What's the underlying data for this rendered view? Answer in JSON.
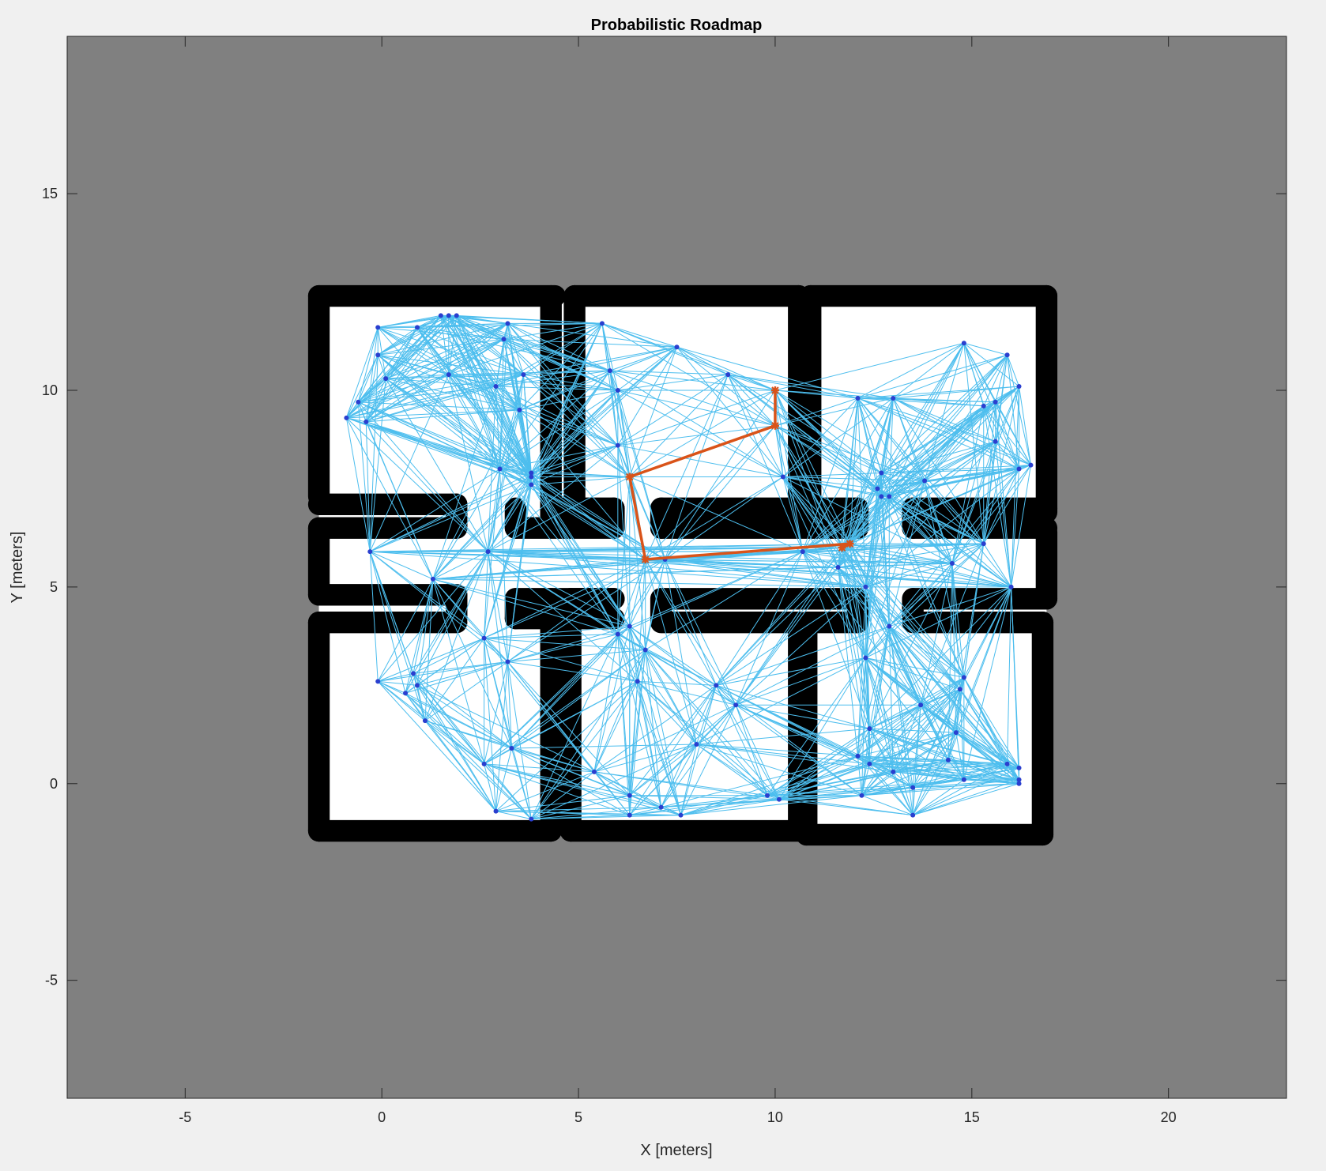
{
  "chart_data": {
    "type": "scatter",
    "title": "Probabilistic Roadmap",
    "xlabel": "X [meters]",
    "ylabel": "Y [meters]",
    "xlim": [
      -8,
      23
    ],
    "ylim": [
      -8,
      19
    ],
    "xticks": [
      -5,
      0,
      5,
      10,
      15,
      20
    ],
    "yticks": [
      -5,
      0,
      5,
      10,
      15
    ],
    "grid": false,
    "colors": {
      "figure_bg": "#f0f0f0",
      "unknown_map": "#808080",
      "free_space": "#ffffff",
      "walls": "#000000",
      "edges": "#4dbeee",
      "nodes": "#2a3fcf",
      "path": "#d95319"
    },
    "walls": [
      {
        "x": [
          -1.6,
          4.4
        ],
        "y": [
          12.4,
          12.4
        ]
      },
      {
        "x": [
          -1.6,
          -1.6
        ],
        "y": [
          12.4,
          7.3
        ]
      },
      {
        "x": [
          4.3,
          4.3
        ],
        "y": [
          12.4,
          6.8
        ]
      },
      {
        "x": [
          -1.6,
          1.9
        ],
        "y": [
          7.1,
          7.1
        ]
      },
      {
        "x": [
          1.9,
          1.9
        ],
        "y": [
          7.1,
          6.5
        ]
      },
      {
        "x": [
          -1.6,
          1.9
        ],
        "y": [
          6.5,
          6.5
        ]
      },
      {
        "x": [
          -1.6,
          -1.6
        ],
        "y": [
          6.5,
          4.8
        ]
      },
      {
        "x": [
          -1.6,
          1.9
        ],
        "y": [
          4.8,
          4.8
        ]
      },
      {
        "x": [
          1.9,
          1.9
        ],
        "y": [
          4.8,
          4.2
        ]
      },
      {
        "x": [
          -1.6,
          1.9
        ],
        "y": [
          4.1,
          4.1
        ]
      },
      {
        "x": [
          -1.6,
          -1.6
        ],
        "y": [
          4.1,
          -1.2
        ]
      },
      {
        "x": [
          -1.6,
          4.3
        ],
        "y": [
          -1.2,
          -1.2
        ]
      },
      {
        "x": [
          4.3,
          4.3
        ],
        "y": [
          -1.2,
          4.7
        ]
      },
      {
        "x": [
          3.4,
          5.9
        ],
        "y": [
          4.7,
          4.7
        ]
      },
      {
        "x": [
          3.4,
          3.4
        ],
        "y": [
          4.7,
          4.2
        ]
      },
      {
        "x": [
          3.4,
          5.9
        ],
        "y": [
          4.2,
          4.2
        ]
      },
      {
        "x": [
          3.4,
          3.4
        ],
        "y": [
          6.5,
          7.0
        ]
      },
      {
        "x": [
          3.4,
          5.9
        ],
        "y": [
          6.5,
          6.5
        ]
      },
      {
        "x": [
          5.9,
          5.9
        ],
        "y": [
          6.5,
          7.0
        ]
      },
      {
        "x": [
          4.3,
          5.9
        ],
        "y": [
          7.0,
          7.0
        ]
      },
      {
        "x": [
          4.9,
          10.6
        ],
        "y": [
          12.4,
          12.4
        ]
      },
      {
        "x": [
          4.9,
          4.9
        ],
        "y": [
          12.4,
          7.0
        ]
      },
      {
        "x": [
          10.6,
          10.6
        ],
        "y": [
          12.4,
          6.9
        ]
      },
      {
        "x": [
          7.1,
          10.6
        ],
        "y": [
          7.0,
          7.0
        ]
      },
      {
        "x": [
          7.1,
          7.1
        ],
        "y": [
          7.0,
          6.5
        ]
      },
      {
        "x": [
          7.1,
          12.1
        ],
        "y": [
          6.5,
          6.5
        ]
      },
      {
        "x": [
          12.1,
          12.1
        ],
        "y": [
          6.5,
          7.0
        ]
      },
      {
        "x": [
          10.9,
          12.1
        ],
        "y": [
          7.0,
          7.0
        ]
      },
      {
        "x": [
          10.9,
          10.9
        ],
        "y": [
          7.0,
          12.4
        ]
      },
      {
        "x": [
          10.9,
          16.9
        ],
        "y": [
          12.4,
          12.4
        ]
      },
      {
        "x": [
          16.9,
          16.9
        ],
        "y": [
          12.4,
          6.9
        ]
      },
      {
        "x": [
          13.5,
          16.9
        ],
        "y": [
          7.0,
          7.0
        ]
      },
      {
        "x": [
          13.5,
          13.5
        ],
        "y": [
          7.0,
          6.5
        ]
      },
      {
        "x": [
          13.5,
          16.9
        ],
        "y": [
          6.5,
          6.5
        ]
      },
      {
        "x": [
          16.9,
          16.9
        ],
        "y": [
          6.4,
          4.7
        ]
      },
      {
        "x": [
          13.5,
          16.9
        ],
        "y": [
          4.7,
          4.7
        ]
      },
      {
        "x": [
          13.5,
          13.5
        ],
        "y": [
          4.7,
          4.2
        ]
      },
      {
        "x": [
          13.5,
          16.8
        ],
        "y": [
          4.1,
          4.1
        ]
      },
      {
        "x": [
          16.8,
          16.8
        ],
        "y": [
          4.1,
          -1.3
        ]
      },
      {
        "x": [
          10.8,
          16.8
        ],
        "y": [
          -1.3,
          -1.3
        ]
      },
      {
        "x": [
          10.8,
          10.8
        ],
        "y": [
          -1.3,
          4.1
        ]
      },
      {
        "x": [
          10.8,
          12.1
        ],
        "y": [
          4.1,
          4.1
        ]
      },
      {
        "x": [
          12.1,
          12.1
        ],
        "y": [
          4.1,
          4.7
        ]
      },
      {
        "x": [
          7.1,
          12.1
        ],
        "y": [
          4.7,
          4.7
        ]
      },
      {
        "x": [
          7.1,
          7.1
        ],
        "y": [
          4.7,
          4.2
        ]
      },
      {
        "x": [
          7.1,
          10.6
        ],
        "y": [
          4.1,
          4.1
        ]
      },
      {
        "x": [
          10.6,
          10.6
        ],
        "y": [
          4.1,
          -1.2
        ]
      },
      {
        "x": [
          4.8,
          10.6
        ],
        "y": [
          -1.2,
          -1.2
        ]
      },
      {
        "x": [
          4.8,
          4.8
        ],
        "y": [
          -1.2,
          4.7
        ]
      },
      {
        "x": [
          4.8,
          5.9
        ],
        "y": [
          4.7,
          4.7
        ]
      }
    ],
    "nodes": [
      [
        -0.1,
        11.6
      ],
      [
        0.9,
        11.6
      ],
      [
        1.5,
        11.9
      ],
      [
        1.7,
        11.9
      ],
      [
        1.9,
        11.9
      ],
      [
        3.2,
        11.7
      ],
      [
        -0.1,
        10.9
      ],
      [
        3.1,
        11.3
      ],
      [
        0.1,
        10.3
      ],
      [
        1.7,
        10.4
      ],
      [
        3.6,
        10.4
      ],
      [
        2.9,
        10.1
      ],
      [
        -0.6,
        9.7
      ],
      [
        -0.9,
        9.3
      ],
      [
        -0.4,
        9.2
      ],
      [
        3.5,
        9.5
      ],
      [
        3.0,
        8.0
      ],
      [
        3.8,
        7.9
      ],
      [
        3.8,
        7.8
      ],
      [
        3.8,
        7.6
      ],
      [
        2.7,
        5.9
      ],
      [
        -0.3,
        5.9
      ],
      [
        1.3,
        5.2
      ],
      [
        5.6,
        11.7
      ],
      [
        7.5,
        11.1
      ],
      [
        5.8,
        10.5
      ],
      [
        8.8,
        10.4
      ],
      [
        6.0,
        10.0
      ],
      [
        10.0,
        10.0
      ],
      [
        10.0,
        9.1
      ],
      [
        6.0,
        8.6
      ],
      [
        6.3,
        7.8
      ],
      [
        10.2,
        7.8
      ],
      [
        6.7,
        5.7
      ],
      [
        7.2,
        5.7
      ],
      [
        10.7,
        5.9
      ],
      [
        11.7,
        6.0
      ],
      [
        11.9,
        6.1
      ],
      [
        11.6,
        5.5
      ],
      [
        12.3,
        5.0
      ],
      [
        12.1,
        9.8
      ],
      [
        13.0,
        9.8
      ],
      [
        14.8,
        11.2
      ],
      [
        15.9,
        10.9
      ],
      [
        16.2,
        10.1
      ],
      [
        15.3,
        9.6
      ],
      [
        15.6,
        9.7
      ],
      [
        16.5,
        8.1
      ],
      [
        16.2,
        8.0
      ],
      [
        15.6,
        8.7
      ],
      [
        12.7,
        7.9
      ],
      [
        12.6,
        7.5
      ],
      [
        12.9,
        7.3
      ],
      [
        12.7,
        7.3
      ],
      [
        13.8,
        7.7
      ],
      [
        15.3,
        6.1
      ],
      [
        14.5,
        5.6
      ],
      [
        16.0,
        5.0
      ],
      [
        2.6,
        3.7
      ],
      [
        3.2,
        3.1
      ],
      [
        -0.1,
        2.6
      ],
      [
        0.8,
        2.8
      ],
      [
        0.9,
        2.5
      ],
      [
        0.6,
        2.3
      ],
      [
        1.1,
        1.6
      ],
      [
        3.3,
        0.9
      ],
      [
        2.6,
        0.5
      ],
      [
        2.9,
        -0.7
      ],
      [
        3.8,
        -0.9
      ],
      [
        6.0,
        3.8
      ],
      [
        6.3,
        4.0
      ],
      [
        6.7,
        3.4
      ],
      [
        6.5,
        2.6
      ],
      [
        8.5,
        2.5
      ],
      [
        9.0,
        2.0
      ],
      [
        8.0,
        1.0
      ],
      [
        5.4,
        0.3
      ],
      [
        6.3,
        -0.3
      ],
      [
        7.1,
        -0.6
      ],
      [
        6.3,
        -0.8
      ],
      [
        7.6,
        -0.8
      ],
      [
        9.8,
        -0.3
      ],
      [
        10.1,
        -0.4
      ],
      [
        12.9,
        4.0
      ],
      [
        12.3,
        3.2
      ],
      [
        14.8,
        2.7
      ],
      [
        14.7,
        2.4
      ],
      [
        13.7,
        2.0
      ],
      [
        12.4,
        1.4
      ],
      [
        14.6,
        1.3
      ],
      [
        12.1,
        0.7
      ],
      [
        12.4,
        0.5
      ],
      [
        13.0,
        0.3
      ],
      [
        14.4,
        0.6
      ],
      [
        15.9,
        0.5
      ],
      [
        16.2,
        0.4
      ],
      [
        16.2,
        0.1
      ],
      [
        16.2,
        0.0
      ],
      [
        14.8,
        0.1
      ],
      [
        12.2,
        -0.3
      ],
      [
        13.5,
        -0.1
      ],
      [
        13.5,
        -0.8
      ]
    ],
    "path": [
      [
        10.0,
        10.0
      ],
      [
        10.0,
        9.1
      ],
      [
        6.3,
        7.8
      ],
      [
        6.7,
        5.7
      ],
      [
        11.9,
        6.1
      ],
      [
        11.7,
        6.0
      ]
    ]
  }
}
